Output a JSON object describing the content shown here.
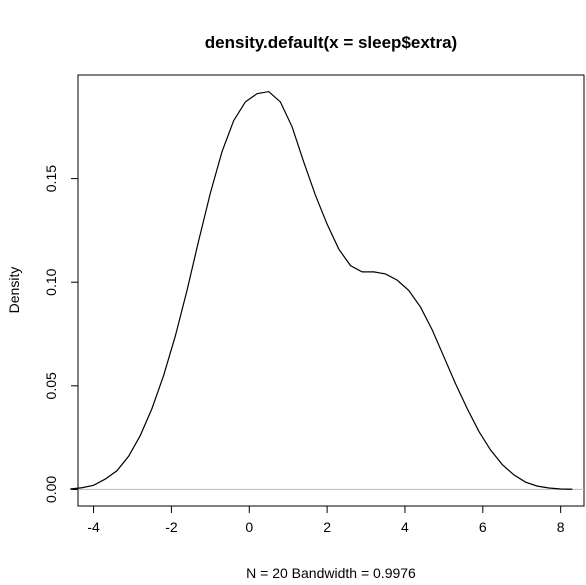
{
  "chart_data": {
    "type": "line",
    "title": "density.default(x = sleep$extra)",
    "xlabel": "N = 20   Bandwidth = 0.9976",
    "ylabel": "Density",
    "xlim": [
      -4.4,
      8.6
    ],
    "ylim": [
      -0.008,
      0.2
    ],
    "x_ticks": [
      -4,
      -2,
      0,
      2,
      4,
      6,
      8
    ],
    "y_ticks": [
      0.0,
      0.05,
      0.1,
      0.15
    ],
    "x_tick_labels": [
      "-4",
      "-2",
      "0",
      "2",
      "4",
      "6",
      "8"
    ],
    "y_tick_labels": [
      "0.00",
      "0.05",
      "0.10",
      "0.15"
    ],
    "baseline_y": 0,
    "grid": false,
    "colors": {
      "line": "#000000",
      "baseline": "#bebebe",
      "frame": "#000000"
    },
    "series": [
      {
        "x": [
          -4.6,
          -4.3,
          -4.0,
          -3.7,
          -3.4,
          -3.1,
          -2.8,
          -2.5,
          -2.2,
          -1.9,
          -1.6,
          -1.3,
          -1.0,
          -0.7,
          -0.4,
          -0.1,
          0.2,
          0.5,
          0.8,
          1.1,
          1.4,
          1.7,
          2.0,
          2.3,
          2.6,
          2.9,
          3.2,
          3.5,
          3.8,
          4.1,
          4.4,
          4.7,
          5.0,
          5.3,
          5.6,
          5.9,
          6.2,
          6.5,
          6.8,
          7.1,
          7.4,
          7.7,
          8.0,
          8.3
        ],
        "y": [
          0.0002,
          0.0008,
          0.002,
          0.005,
          0.009,
          0.016,
          0.026,
          0.039,
          0.055,
          0.074,
          0.096,
          0.12,
          0.143,
          0.163,
          0.178,
          0.187,
          0.191,
          0.192,
          0.187,
          0.175,
          0.158,
          0.142,
          0.128,
          0.116,
          0.108,
          0.105,
          0.105,
          0.104,
          0.101,
          0.096,
          0.088,
          0.077,
          0.064,
          0.051,
          0.039,
          0.028,
          0.019,
          0.012,
          0.007,
          0.0035,
          0.0016,
          0.0007,
          0.0002,
          0.0001
        ]
      }
    ]
  }
}
